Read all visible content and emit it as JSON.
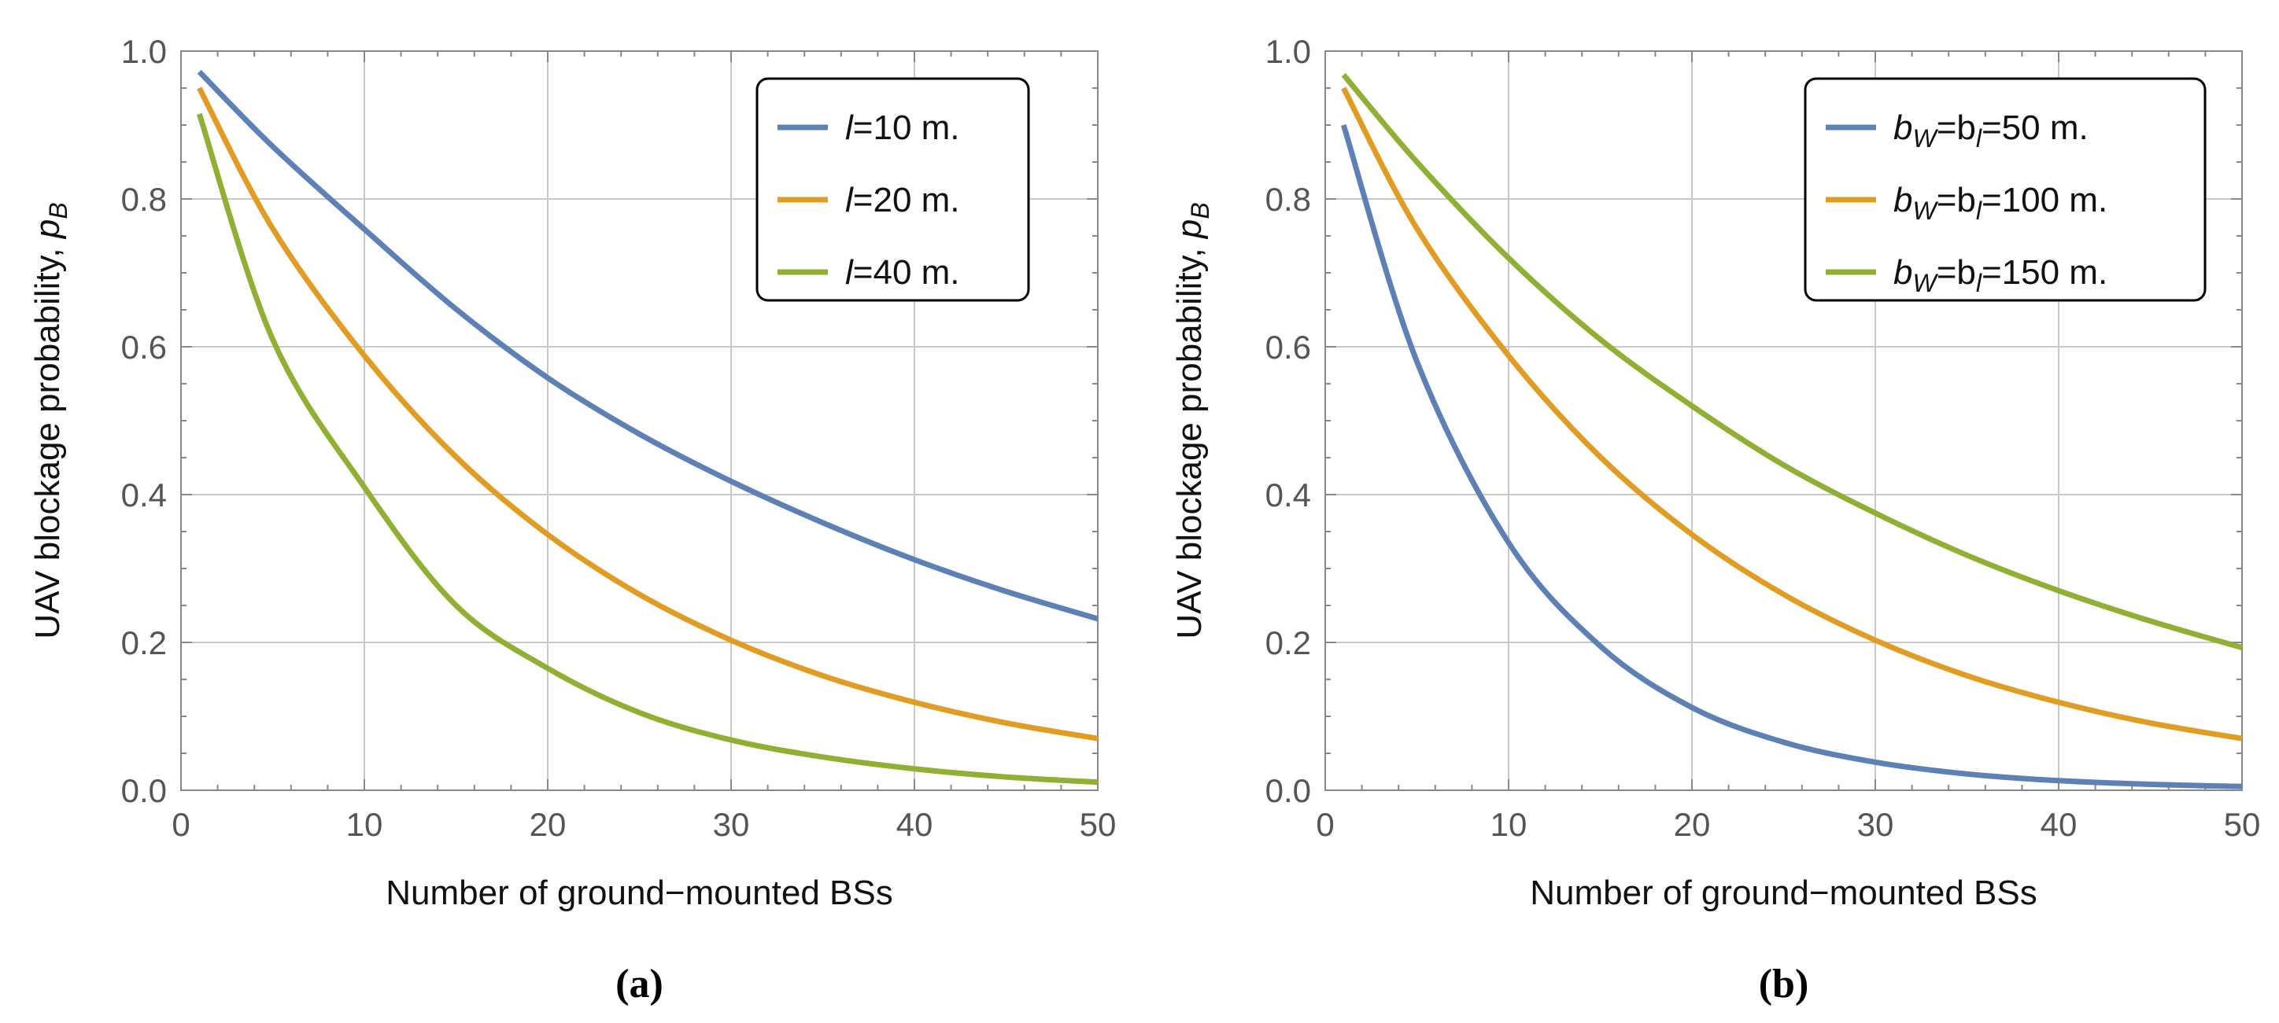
{
  "chart_data": [
    {
      "type": "line",
      "panel_label": "(a)",
      "xlabel": "Number of ground−mounted BSs",
      "ylabel_main": "UAV blockage probability, ",
      "ylabel_symbol": "p",
      "ylabel_subscript": "B",
      "xlim": [
        0,
        50
      ],
      "ylim": [
        0,
        1
      ],
      "xticks": [
        "0",
        "10",
        "20",
        "30",
        "40",
        "50"
      ],
      "yticks": [
        "0.0",
        "0.2",
        "0.4",
        "0.6",
        "0.8",
        "1.0"
      ],
      "grid": true,
      "legend_position": "top-right",
      "series": [
        {
          "name": "l=10 m.",
          "legend": {
            "prefix": "",
            "var1": "l",
            "mid": "",
            "var2": "",
            "suffix": "=10 m."
          },
          "color": "#5E81B5",
          "x": [
            1,
            5,
            10,
            15,
            20,
            25,
            30,
            35,
            40,
            45,
            50
          ],
          "y": [
            0.972,
            0.871,
            0.759,
            0.651,
            0.558,
            0.482,
            0.418,
            0.362,
            0.312,
            0.269,
            0.232
          ]
        },
        {
          "name": "l=20 m.",
          "legend": {
            "prefix": "",
            "var1": "l",
            "mid": "",
            "var2": "",
            "suffix": "=20 m."
          },
          "color": "#E19C24",
          "x": [
            1,
            5,
            10,
            15,
            20,
            25,
            30,
            35,
            40,
            45,
            50
          ],
          "y": [
            0.95,
            0.76,
            0.588,
            0.451,
            0.346,
            0.265,
            0.203,
            0.155,
            0.119,
            0.091,
            0.07
          ]
        },
        {
          "name": "l=40 m.",
          "legend": {
            "prefix": "",
            "var1": "l",
            "mid": "",
            "var2": "",
            "suffix": "=40 m."
          },
          "color": "#8FB032",
          "x": [
            1,
            5,
            10,
            15,
            20,
            25,
            30,
            35,
            40,
            45,
            50
          ],
          "y": [
            0.915,
            0.61,
            0.41,
            0.25,
            0.165,
            0.105,
            0.068,
            0.045,
            0.029,
            0.018,
            0.011
          ]
        }
      ]
    },
    {
      "type": "line",
      "panel_label": "(b)",
      "xlabel": "Number of ground−mounted BSs",
      "ylabel_main": "UAV blockage probability, ",
      "ylabel_symbol": "p",
      "ylabel_subscript": "B",
      "xlim": [
        0,
        50
      ],
      "ylim": [
        0,
        1
      ],
      "xticks": [
        "0",
        "10",
        "20",
        "30",
        "40",
        "50"
      ],
      "yticks": [
        "0.0",
        "0.2",
        "0.4",
        "0.6",
        "0.8",
        "1.0"
      ],
      "grid": true,
      "legend_position": "top-right",
      "series": [
        {
          "name": "b_W=b_l=50 m.",
          "legend": {
            "prefix": "b",
            "sub1": "W",
            "mid": "=b",
            "sub2": "l",
            "suffix": "=50 m."
          },
          "color": "#5E81B5",
          "x": [
            1,
            5,
            10,
            15,
            20,
            25,
            30,
            35,
            40,
            45,
            50
          ],
          "y": [
            0.9,
            0.58,
            0.335,
            0.195,
            0.112,
            0.065,
            0.038,
            0.022,
            0.013,
            0.008,
            0.005
          ]
        },
        {
          "name": "b_W=b_l=100 m.",
          "legend": {
            "prefix": "b",
            "sub1": "W",
            "mid": "=b",
            "sub2": "l",
            "suffix": "=100 m."
          },
          "color": "#E19C24",
          "x": [
            1,
            5,
            10,
            15,
            20,
            25,
            30,
            35,
            40,
            45,
            50
          ],
          "y": [
            0.95,
            0.76,
            0.588,
            0.451,
            0.346,
            0.265,
            0.203,
            0.155,
            0.119,
            0.091,
            0.07
          ]
        },
        {
          "name": "b_W=b_l=150 m.",
          "legend": {
            "prefix": "b",
            "sub1": "W",
            "mid": "=b",
            "sub2": "l",
            "suffix": "=150 m."
          },
          "color": "#8FB032",
          "x": [
            1,
            5,
            10,
            15,
            20,
            25,
            30,
            35,
            40,
            45,
            50
          ],
          "y": [
            0.968,
            0.85,
            0.72,
            0.61,
            0.52,
            0.44,
            0.375,
            0.318,
            0.27,
            0.229,
            0.193
          ]
        }
      ]
    }
  ]
}
